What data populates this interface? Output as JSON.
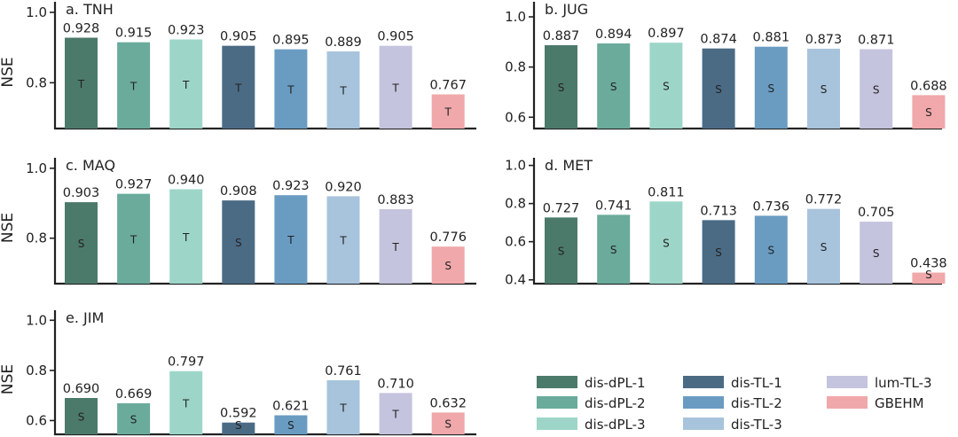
{
  "chart_data": {
    "type": "bar",
    "series_names": [
      "dis-dPL-1",
      "dis-dPL-2",
      "dis-dPL-3",
      "dis-TL-1",
      "dis-TL-2",
      "dis-TL-3",
      "lum-TL-3",
      "GBEHM"
    ],
    "colors": [
      "#4c7a6a",
      "#6aab9c",
      "#9dd6c8",
      "#4b6b85",
      "#6a9cc2",
      "#a8c4dc",
      "#c5c4de",
      "#f0a8aa"
    ],
    "legend": {
      "placement": "bottom-right",
      "entries": [
        "dis-dPL-1",
        "dis-dPL-2",
        "dis-dPL-3",
        "dis-TL-1",
        "dis-TL-2",
        "dis-TL-3",
        "lum-TL-3",
        "GBEHM"
      ]
    },
    "panels": [
      {
        "title": "a. TNH",
        "ylabel": "NSE",
        "ylim": [
          0.67,
          1.03
        ],
        "yticks": [
          "0.8",
          "1.0"
        ],
        "ytick_values": [
          0.8,
          1.0
        ],
        "values": [
          0.928,
          0.915,
          0.923,
          0.905,
          0.895,
          0.889,
          0.905,
          0.767
        ],
        "value_labels": [
          "0.928",
          "0.915",
          "0.923",
          "0.905",
          "0.895",
          "0.889",
          "0.905",
          "0.767"
        ],
        "letters": [
          "T",
          "T",
          "T",
          "T",
          "T",
          "T",
          "T",
          "T"
        ]
      },
      {
        "title": "b. JUG",
        "ylabel": "",
        "ylim": [
          0.555,
          1.06
        ],
        "yticks": [
          "0.6",
          "0.8",
          "1.0"
        ],
        "ytick_values": [
          0.6,
          0.8,
          1.0
        ],
        "values": [
          0.887,
          0.894,
          0.897,
          0.874,
          0.881,
          0.873,
          0.871,
          0.688
        ],
        "value_labels": [
          "0.887",
          "0.894",
          "0.897",
          "0.874",
          "0.881",
          "0.873",
          "0.871",
          "0.688"
        ],
        "letters": [
          "S",
          "S",
          "S",
          "S",
          "S",
          "S",
          "S",
          "S"
        ]
      },
      {
        "title": "c. MAQ",
        "ylabel": "NSE",
        "ylim": [
          0.67,
          1.03
        ],
        "yticks": [
          "0.8",
          "1.0"
        ],
        "ytick_values": [
          0.8,
          1.0
        ],
        "values": [
          0.903,
          0.927,
          0.94,
          0.908,
          0.923,
          0.92,
          0.883,
          0.776
        ],
        "value_labels": [
          "0.903",
          "0.927",
          "0.940",
          "0.908",
          "0.923",
          "0.920",
          "0.883",
          "0.776"
        ],
        "letters": [
          "S",
          "T",
          "T",
          "S",
          "T",
          "T",
          "T",
          "S"
        ]
      },
      {
        "title": "d. MET",
        "ylabel": "",
        "ylim": [
          0.38,
          1.04
        ],
        "yticks": [
          "0.4",
          "0.6",
          "0.8",
          "1.0"
        ],
        "ytick_values": [
          0.4,
          0.6,
          0.8,
          1.0
        ],
        "values": [
          0.727,
          0.741,
          0.811,
          0.713,
          0.736,
          0.772,
          0.705,
          0.438
        ],
        "value_labels": [
          "0.727",
          "0.741",
          "0.811",
          "0.713",
          "0.736",
          "0.772",
          "0.705",
          "0.438"
        ],
        "letters": [
          "S",
          "S",
          "S",
          "S",
          "S",
          "S",
          "S",
          "S"
        ]
      },
      {
        "title": "e. JIM",
        "ylabel": "NSE",
        "ylim": [
          0.545,
          1.04
        ],
        "yticks": [
          "0.6",
          "0.8",
          "1.0"
        ],
        "ytick_values": [
          0.6,
          0.8,
          1.0
        ],
        "values": [
          0.69,
          0.669,
          0.797,
          0.592,
          0.621,
          0.761,
          0.71,
          0.632
        ],
        "value_labels": [
          "0.690",
          "0.669",
          "0.797",
          "0.592",
          "0.621",
          "0.761",
          "0.710",
          "0.632"
        ],
        "letters": [
          "S",
          "S",
          "T",
          "S",
          "S",
          "T",
          "T",
          "S"
        ]
      }
    ]
  }
}
